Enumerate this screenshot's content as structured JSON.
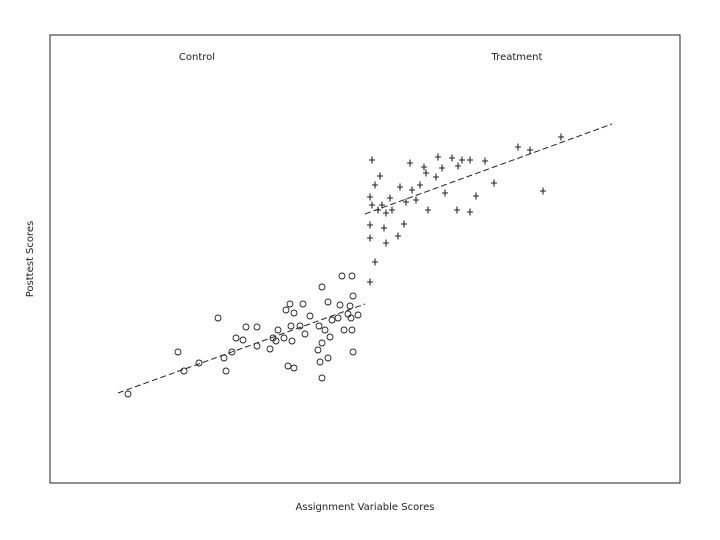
{
  "chart_data": {
    "type": "scatter",
    "x_label": "Assignment Variable Scores",
    "y_label": "Posttest Scores",
    "xlim": [
      0,
      630
    ],
    "ylim": [
      0,
      448
    ],
    "color": "#222222",
    "series": [
      {
        "name": "Control",
        "marker": "circle",
        "x": [
          78,
          128,
          134,
          149,
          168,
          176,
          174,
          182,
          186,
          193,
          196,
          207,
          207,
          220,
          223,
          226,
          228,
          234,
          236,
          238,
          240,
          241,
          242,
          244,
          244,
          250,
          253,
          255,
          260,
          268,
          269,
          270,
          272,
          272,
          272,
          275,
          278,
          278,
          280,
          282,
          288,
          290,
          292,
          294,
          298,
          301,
          300,
          302,
          302,
          303,
          303,
          308
        ],
        "values": [
          89,
          131,
          112,
          120,
          165,
          112,
          125,
          131,
          145,
          143,
          156,
          156,
          137,
          134,
          145,
          142,
          153,
          145,
          173,
          117,
          179,
          157,
          142,
          115,
          170,
          157,
          179,
          149,
          167,
          133,
          157,
          121,
          196,
          105,
          140,
          153,
          125,
          181,
          146,
          163,
          165,
          178,
          207,
          153,
          169,
          165,
          177,
          207,
          153,
          187,
          131,
          168
        ],
        "fit": {
          "x": [
            68,
            315
          ],
          "values": [
            90,
            179
          ]
        }
      },
      {
        "name": "Treatment",
        "marker": "plus",
        "x": [
          320,
          325,
          322,
          325,
          330,
          320,
          322,
          320,
          320,
          328,
          332,
          334,
          336,
          336,
          340,
          342,
          348,
          350,
          354,
          356,
          360,
          362,
          366,
          370,
          374,
          376,
          378,
          386,
          388,
          392,
          395,
          402,
          407,
          408,
          412,
          420,
          420,
          426,
          435,
          444,
          468,
          480,
          493,
          511
        ],
        "values": [
          201,
          221,
          323,
          298,
          307,
          286,
          278,
          258,
          245,
          273,
          278,
          255,
          270,
          240,
          285,
          273,
          247,
          296,
          259,
          281,
          320,
          293,
          283,
          298,
          316,
          310,
          273,
          306,
          326,
          315,
          290,
          325,
          273,
          317,
          323,
          323,
          271,
          287,
          322,
          300,
          336,
          333,
          292,
          346
        ],
        "fit": {
          "x": [
            315,
            562
          ],
          "values": [
            269,
            359
          ]
        }
      }
    ]
  }
}
